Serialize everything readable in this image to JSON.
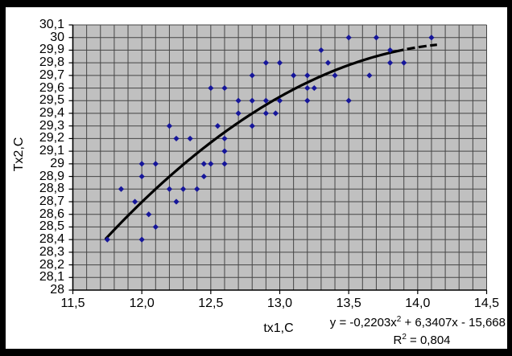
{
  "chart_data": {
    "type": "scatter",
    "xlabel": "tx1,C",
    "ylabel": "Tx2,C",
    "x_range": [
      11.5,
      14.5
    ],
    "y_range": [
      28.0,
      30.1
    ],
    "grid_step_x": 0.1,
    "grid_step_y": 0.1,
    "x_major_tick_values": [
      11.5,
      12.0,
      12.5,
      13.0,
      13.5,
      14.0,
      14.5
    ],
    "x_major_tick_labels": [
      "11,5",
      "12,0",
      "12,5",
      "13,0",
      "13,5",
      "14,0",
      "14,5"
    ],
    "y_tick_values": [
      30.1,
      30.0,
      29.9,
      29.8,
      29.7,
      29.6,
      29.5,
      29.4,
      29.3,
      29.2,
      29.1,
      29.0,
      28.9,
      28.8,
      28.7,
      28.6,
      28.5,
      28.4,
      28.3,
      28.2,
      28.1,
      28.0
    ],
    "y_tick_labels": [
      "30,1",
      "30",
      "29,9",
      "29,8",
      "29,7",
      "29,6",
      "29,5",
      "29,4",
      "29,3",
      "29,2",
      "29,1",
      "29",
      "28,9",
      "28,8",
      "28,7",
      "28,6",
      "28,5",
      "28,4",
      "28,3",
      "28,2",
      "28,1",
      "28"
    ],
    "points": [
      [
        11.75,
        28.4
      ],
      [
        11.85,
        28.8
      ],
      [
        11.95,
        28.7
      ],
      [
        12.0,
        28.4
      ],
      [
        12.0,
        28.9
      ],
      [
        12.0,
        29.0
      ],
      [
        12.05,
        28.6
      ],
      [
        12.1,
        28.5
      ],
      [
        12.1,
        29.0
      ],
      [
        12.2,
        28.8
      ],
      [
        12.2,
        29.3
      ],
      [
        12.25,
        28.7
      ],
      [
        12.25,
        29.2
      ],
      [
        12.3,
        28.8
      ],
      [
        12.35,
        29.2
      ],
      [
        12.4,
        28.8
      ],
      [
        12.45,
        28.9
      ],
      [
        12.45,
        29.0
      ],
      [
        12.5,
        29.0
      ],
      [
        12.5,
        29.6
      ],
      [
        12.55,
        29.3
      ],
      [
        12.6,
        29.0
      ],
      [
        12.6,
        29.1
      ],
      [
        12.6,
        29.2
      ],
      [
        12.6,
        29.6
      ],
      [
        12.7,
        29.4
      ],
      [
        12.7,
        29.5
      ],
      [
        12.8,
        29.3
      ],
      [
        12.8,
        29.5
      ],
      [
        12.8,
        29.7
      ],
      [
        12.9,
        29.4
      ],
      [
        12.9,
        29.5
      ],
      [
        12.9,
        29.8
      ],
      [
        12.97,
        29.4
      ],
      [
        13.0,
        29.5
      ],
      [
        13.0,
        29.8
      ],
      [
        13.1,
        29.7
      ],
      [
        13.2,
        29.5
      ],
      [
        13.2,
        29.6
      ],
      [
        13.2,
        29.7
      ],
      [
        13.25,
        29.6
      ],
      [
        13.3,
        29.9
      ],
      [
        13.35,
        29.8
      ],
      [
        13.4,
        29.7
      ],
      [
        13.5,
        29.5
      ],
      [
        13.5,
        30.0
      ],
      [
        13.65,
        29.7
      ],
      [
        13.7,
        30.0
      ],
      [
        13.8,
        29.8
      ],
      [
        13.8,
        29.9
      ],
      [
        13.9,
        29.8
      ],
      [
        14.1,
        30.0
      ]
    ],
    "trendline": {
      "type": "polynomial",
      "a": -0.2203,
      "b": 6.3407,
      "c": -15.668,
      "x_start": 11.74,
      "x_solid_end": 13.84,
      "x_end": 14.14,
      "equation_prefix": "y = -0,2203x",
      "equation_sup": "2",
      "equation_suffix": " + 6,3407x - 15,668",
      "r2_prefix": "R",
      "r2_sup": "2",
      "r2_suffix": " = 0,804"
    },
    "colors": {
      "outer_bg": "#000000",
      "panel_bg": "#ffffff",
      "plot_bg": "#c0c0c0",
      "grid": "#454545",
      "axis": "#000000",
      "marker": "#16169a",
      "trend": "#000000"
    },
    "legend": null,
    "grid": true
  }
}
